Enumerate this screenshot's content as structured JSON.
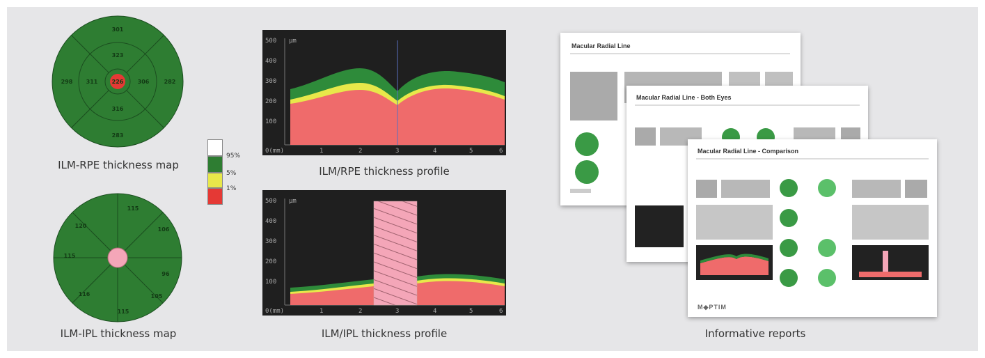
{
  "captions": {
    "rpe_map": "ILM-RPE thickness map",
    "ipl_map": "ILM-IPL thickness map",
    "rpe_profile": "ILM/RPE thickness profile",
    "ipl_profile": "ILM/IPL thickness profile",
    "reports": "Informative reports"
  },
  "legend": [
    {
      "label": "95%",
      "color": "#ffffff"
    },
    {
      "label": "5%",
      "color": "#2e7d32"
    },
    {
      "label": "1%",
      "color": "#e8e84a"
    },
    {
      "label": "",
      "color": "#e53935"
    }
  ],
  "legend_labels": [
    "95%",
    "5%",
    "1%"
  ],
  "rpe_map_values": {
    "center": "226",
    "inner_top": "323",
    "inner_right": "306",
    "inner_bottom": "316",
    "inner_left": "311",
    "outer_top": "301",
    "outer_right": "282",
    "outer_bottom": "283",
    "outer_left": "298"
  },
  "ipl_map_values": {
    "s1": "115",
    "s2": "106",
    "s3": "96",
    "s4": "105",
    "s5": "115",
    "s6": "116",
    "s7": "115",
    "s8": "120"
  },
  "profile_common": {
    "unit": "μm",
    "x_label": "0(mm)",
    "x_ticks": [
      "1",
      "2",
      "3",
      "4",
      "5",
      "6"
    ],
    "y_ticks": [
      "100",
      "200",
      "300",
      "400",
      "500"
    ]
  },
  "reports": {
    "sheet1_title": "Macular Radial Line",
    "sheet2_title": "Macular Radial Line - Both Eyes",
    "sheet3_title": "Macular Radial Line - Comparison",
    "logo": "M◆PTIM"
  },
  "colors": {
    "green": "#2e7d32",
    "red": "#ef6b6b",
    "yellow": "#e8e84a",
    "pink": "#f4a6b8"
  }
}
